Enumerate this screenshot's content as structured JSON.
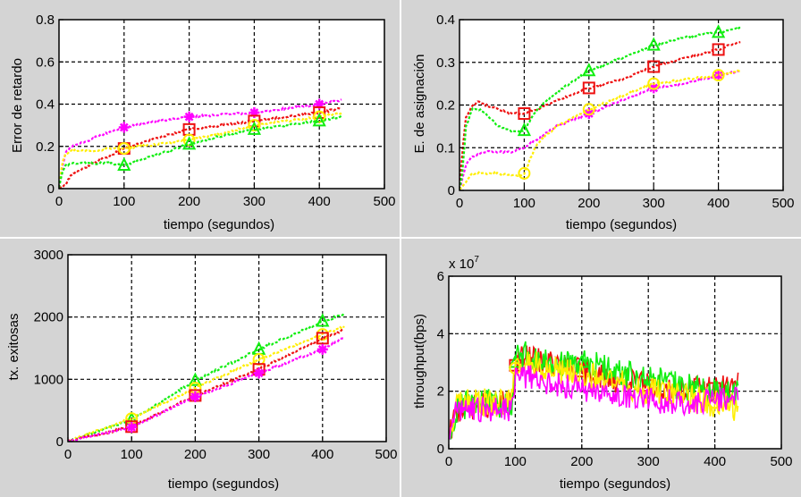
{
  "figure": {
    "background": "#d4d4d4",
    "plot_background": "#ffffff",
    "series_colors": {
      "magenta": "#ff00ff",
      "red": "#ee1111",
      "green": "#11ee11",
      "yellow": "#ffee00"
    }
  },
  "chart_data": [
    {
      "id": "delay-error",
      "type": "line",
      "title": "",
      "xlabel": "tiempo (segundos)",
      "ylabel": "Error de retardo",
      "xlim": [
        0,
        500
      ],
      "ylim": [
        0,
        0.8
      ],
      "xticks": [
        0,
        100,
        200,
        300,
        400,
        500
      ],
      "xtick_labels": [
        "0",
        "100",
        "200",
        "300",
        "400",
        "500"
      ],
      "yticks": [
        0,
        0.2,
        0.4,
        0.6,
        0.8
      ],
      "ytick_labels": [
        "0",
        "0.2",
        "0.4",
        "0.6",
        "0.8"
      ],
      "grid": true,
      "series": [
        {
          "color": "magenta",
          "marker": "star",
          "marker_x": [
            100,
            200,
            300,
            400
          ],
          "x": [
            0,
            5,
            10,
            20,
            40,
            60,
            80,
            100,
            150,
            200,
            250,
            300,
            350,
            400,
            435
          ],
          "y": [
            0.0,
            0.1,
            0.17,
            0.2,
            0.22,
            0.25,
            0.27,
            0.29,
            0.32,
            0.34,
            0.35,
            0.36,
            0.38,
            0.4,
            0.42
          ]
        },
        {
          "color": "red",
          "marker": "square",
          "marker_x": [
            100,
            200,
            300,
            400
          ],
          "x": [
            0,
            10,
            20,
            40,
            60,
            80,
            100,
            150,
            200,
            250,
            300,
            350,
            400,
            435
          ],
          "y": [
            0.0,
            0.02,
            0.07,
            0.1,
            0.13,
            0.16,
            0.19,
            0.24,
            0.28,
            0.3,
            0.32,
            0.34,
            0.36,
            0.38
          ]
        },
        {
          "color": "yellow",
          "marker": "circle",
          "marker_x": [
            100,
            200,
            300,
            400
          ],
          "x": [
            0,
            5,
            10,
            20,
            40,
            60,
            80,
            100,
            150,
            200,
            250,
            300,
            350,
            400,
            435
          ],
          "y": [
            0.0,
            0.12,
            0.16,
            0.18,
            0.18,
            0.18,
            0.19,
            0.19,
            0.21,
            0.23,
            0.26,
            0.3,
            0.32,
            0.34,
            0.36
          ]
        },
        {
          "color": "green",
          "marker": "triangle",
          "marker_x": [
            100,
            200,
            300,
            400
          ],
          "x": [
            0,
            5,
            10,
            20,
            40,
            60,
            80,
            100,
            150,
            200,
            250,
            300,
            350,
            400,
            435
          ],
          "y": [
            0.0,
            0.08,
            0.11,
            0.12,
            0.12,
            0.12,
            0.12,
            0.11,
            0.16,
            0.21,
            0.25,
            0.28,
            0.3,
            0.32,
            0.34
          ]
        }
      ]
    },
    {
      "id": "assignment-error",
      "type": "line",
      "title": "",
      "xlabel": "tiempo (segundos)",
      "ylabel": "E. de asignación",
      "xlim": [
        0,
        500
      ],
      "ylim": [
        0,
        0.4
      ],
      "xticks": [
        0,
        100,
        200,
        300,
        400,
        500
      ],
      "xtick_labels": [
        "0",
        "100",
        "200",
        "300",
        "400",
        "500"
      ],
      "yticks": [
        0,
        0.1,
        0.2,
        0.3,
        0.4
      ],
      "ytick_labels": [
        "0",
        "0.1",
        "0.2",
        "0.3",
        "0.4"
      ],
      "grid": true,
      "series": [
        {
          "color": "magenta",
          "marker": "star",
          "marker_x": [
            200,
            300,
            400
          ],
          "x": [
            0,
            10,
            20,
            40,
            60,
            80,
            100,
            120,
            150,
            200,
            250,
            300,
            350,
            400,
            435
          ],
          "y": [
            0.0,
            0.06,
            0.08,
            0.09,
            0.09,
            0.09,
            0.1,
            0.12,
            0.15,
            0.18,
            0.21,
            0.24,
            0.25,
            0.27,
            0.28
          ]
        },
        {
          "color": "red",
          "marker": "square",
          "marker_x": [
            100,
            200,
            300,
            400
          ],
          "x": [
            0,
            5,
            10,
            20,
            30,
            40,
            60,
            80,
            100,
            120,
            150,
            200,
            250,
            300,
            350,
            400,
            435
          ],
          "y": [
            0.0,
            0.1,
            0.17,
            0.2,
            0.21,
            0.2,
            0.19,
            0.18,
            0.18,
            0.19,
            0.21,
            0.24,
            0.26,
            0.29,
            0.31,
            0.33,
            0.35
          ]
        },
        {
          "color": "green",
          "marker": "triangle",
          "marker_x": [
            100,
            200,
            300,
            400
          ],
          "x": [
            0,
            5,
            10,
            20,
            30,
            40,
            60,
            80,
            100,
            120,
            150,
            200,
            250,
            300,
            350,
            400,
            435
          ],
          "y": [
            0.0,
            0.05,
            0.15,
            0.19,
            0.19,
            0.18,
            0.15,
            0.14,
            0.14,
            0.19,
            0.23,
            0.28,
            0.31,
            0.34,
            0.36,
            0.37,
            0.38
          ]
        },
        {
          "color": "yellow",
          "marker": "circle",
          "marker_x": [
            100,
            200,
            300,
            400
          ],
          "x": [
            0,
            5,
            10,
            20,
            40,
            60,
            80,
            95,
            100,
            120,
            150,
            200,
            250,
            300,
            350,
            400,
            435
          ],
          "y": [
            0.0,
            0.01,
            0.02,
            0.04,
            0.04,
            0.04,
            0.035,
            0.035,
            0.04,
            0.11,
            0.15,
            0.19,
            0.22,
            0.25,
            0.26,
            0.27,
            0.28
          ]
        }
      ]
    },
    {
      "id": "successful-tx",
      "type": "line",
      "title": "",
      "xlabel": "tiempo (segundos)",
      "ylabel": "tx. exitosas",
      "xlim": [
        0,
        500
      ],
      "ylim": [
        0,
        3000
      ],
      "xticks": [
        0,
        100,
        200,
        300,
        400,
        500
      ],
      "xtick_labels": [
        "0",
        "100",
        "200",
        "300",
        "400",
        "500"
      ],
      "yticks": [
        0,
        1000,
        2000,
        3000
      ],
      "ytick_labels": [
        "0",
        "1000",
        "2000",
        "3000"
      ],
      "grid": true,
      "series": [
        {
          "color": "green",
          "marker": "triangle",
          "marker_x": [
            100,
            200,
            300,
            400
          ],
          "x": [
            0,
            100,
            200,
            300,
            400,
            435
          ],
          "y": [
            0,
            350,
            980,
            1480,
            1930,
            2050
          ]
        },
        {
          "color": "yellow",
          "marker": "circle",
          "marker_x": [
            100,
            200,
            300,
            400
          ],
          "x": [
            0,
            100,
            200,
            300,
            400,
            435
          ],
          "y": [
            0,
            370,
            860,
            1320,
            1720,
            1850
          ]
        },
        {
          "color": "red",
          "marker": "square",
          "marker_x": [
            100,
            200,
            300,
            400
          ],
          "x": [
            0,
            100,
            200,
            300,
            400,
            435
          ],
          "y": [
            0,
            240,
            740,
            1160,
            1660,
            1800
          ]
        },
        {
          "color": "magenta",
          "marker": "star",
          "marker_x": [
            100,
            200,
            300,
            400
          ],
          "x": [
            0,
            100,
            200,
            300,
            400,
            435
          ],
          "y": [
            0,
            230,
            720,
            1100,
            1480,
            1680
          ]
        }
      ]
    },
    {
      "id": "throughput",
      "type": "line",
      "title": "",
      "xlabel": "tiempo (segundos)",
      "ylabel": "throughput(bps)",
      "y_exponent_label": "x 10",
      "y_exponent": "7",
      "xlim": [
        0,
        500
      ],
      "ylim": [
        0,
        6
      ],
      "xticks": [
        0,
        100,
        200,
        300,
        400,
        500
      ],
      "xtick_labels": [
        "0",
        "100",
        "200",
        "300",
        "400",
        "500"
      ],
      "yticks": [
        0,
        2,
        4,
        6
      ],
      "ytick_labels": [
        "0",
        "2",
        "4",
        "6"
      ],
      "grid": true,
      "noisy": true,
      "series": [
        {
          "color": "red",
          "marker": "square",
          "marker_x": [
            100,
            200,
            300,
            400
          ],
          "noise": 0.45,
          "x": [
            0,
            10,
            20,
            50,
            90,
            95,
            100,
            105,
            150,
            200,
            250,
            300,
            350,
            400,
            435
          ],
          "y": [
            0.3,
            1.2,
            1.4,
            1.5,
            1.6,
            1.6,
            2.9,
            3.2,
            3.0,
            2.7,
            2.4,
            2.2,
            2.1,
            2.1,
            2.2
          ]
        },
        {
          "color": "green",
          "marker": "triangle",
          "marker_x": [
            100,
            200
          ],
          "noise": 0.5,
          "x": [
            0,
            10,
            20,
            50,
            90,
            95,
            100,
            105,
            150,
            200,
            250,
            300,
            350,
            400,
            435
          ],
          "y": [
            0.3,
            1.3,
            1.5,
            1.6,
            1.5,
            1.5,
            3.0,
            3.3,
            3.0,
            3.0,
            2.7,
            2.4,
            2.2,
            1.9,
            1.9
          ]
        },
        {
          "color": "yellow",
          "marker": "circle",
          "marker_x": [
            100,
            400
          ],
          "noise": 0.5,
          "x": [
            0,
            10,
            20,
            50,
            90,
            95,
            100,
            105,
            150,
            200,
            250,
            300,
            350,
            400,
            435
          ],
          "y": [
            0.3,
            1.5,
            1.6,
            1.6,
            1.6,
            1.6,
            2.8,
            3.0,
            2.8,
            2.6,
            2.3,
            2.0,
            1.8,
            1.6,
            1.4
          ]
        },
        {
          "color": "magenta",
          "marker": "star",
          "marker_x": [],
          "noise": 0.45,
          "x": [
            0,
            10,
            20,
            50,
            90,
            95,
            100,
            105,
            150,
            200,
            250,
            300,
            350,
            400,
            435
          ],
          "y": [
            0.3,
            1.2,
            1.3,
            1.4,
            1.4,
            1.4,
            2.5,
            2.6,
            2.3,
            2.1,
            1.9,
            1.7,
            1.6,
            1.7,
            1.8
          ]
        }
      ]
    }
  ]
}
